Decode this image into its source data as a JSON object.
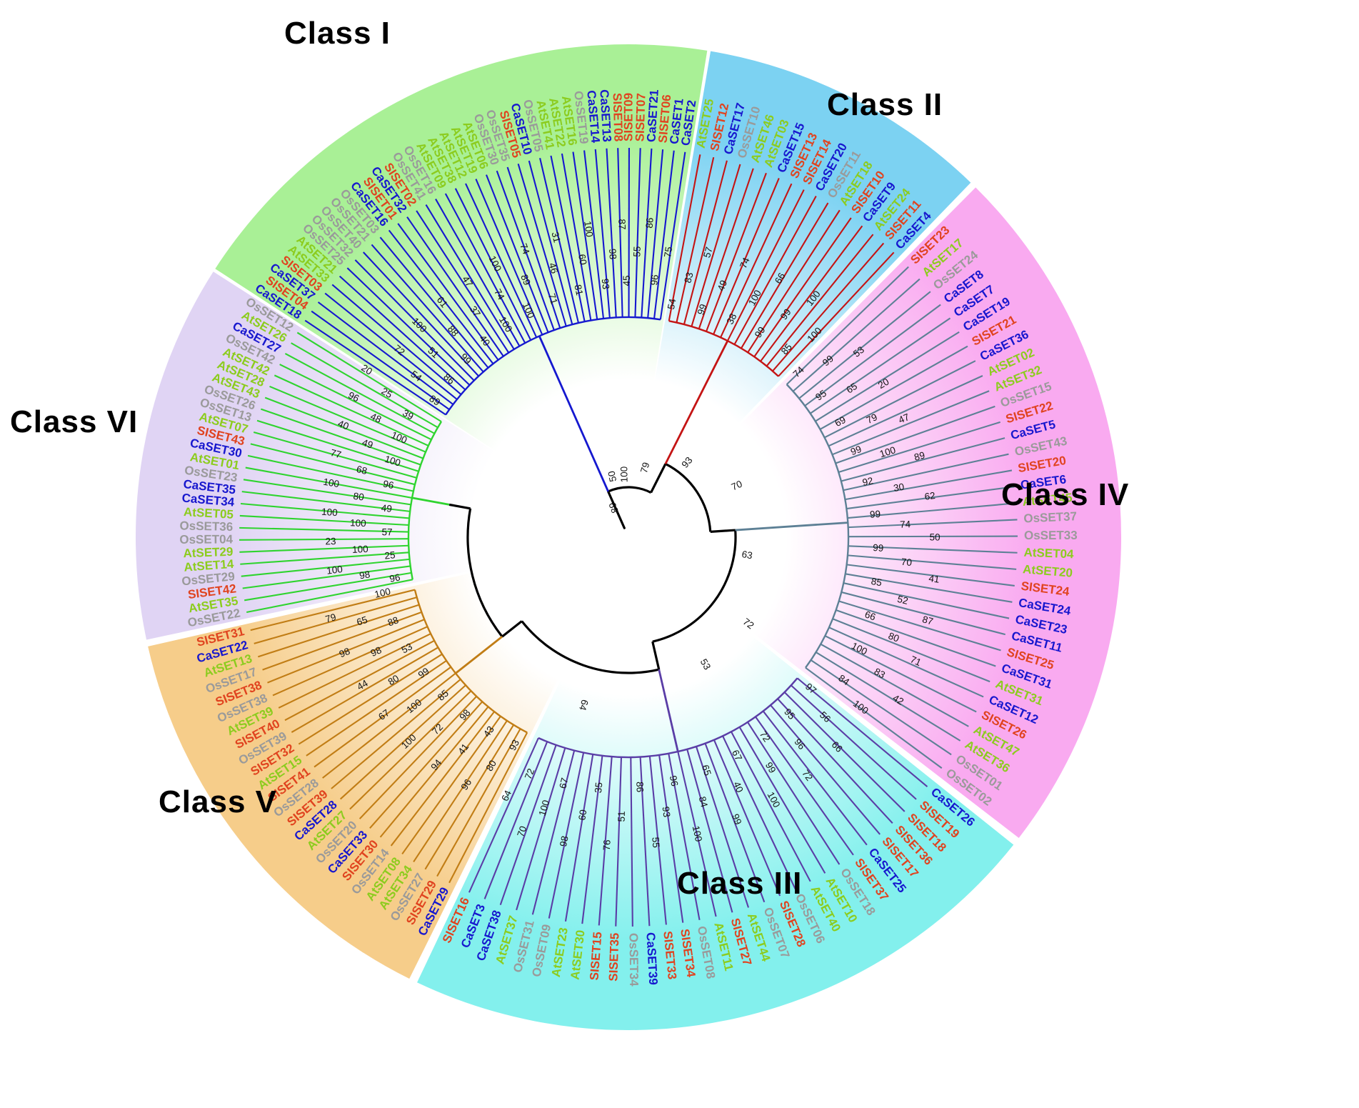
{
  "figure": {
    "type": "circular-phylogenetic-tree",
    "backbone_color": "#000000",
    "backbone_values": [
      89,
      50,
      100,
      79,
      93,
      70,
      63,
      72,
      53,
      64
    ],
    "species_colors": {
      "Ca": "#1717CE",
      "SI": "#E0431F",
      "Os": "#9A9A9A",
      "At": "#8CCC1E"
    },
    "classes": [
      {
        "name": "Class I",
        "sector_color": "#a9f096",
        "branch_color": "#1518cf",
        "leaves": [
          "CaSET18",
          "SISET04",
          "CaSET37",
          "SISET03",
          "AtSET33",
          "AtSET21",
          "OsSET25",
          "OsSET32",
          "OsSET40",
          "OsSET21",
          "OsSET03",
          "CaSET16",
          "SISET01",
          "CaSET32",
          "SISET02",
          "OsSET41",
          "OsSET16",
          "AtSET09",
          "AtSET38",
          "AtSET12",
          "AtSET19",
          "AtSET06",
          "OsSET30",
          "OsSET35",
          "SISET05",
          "CaSET10",
          "OsSET05",
          "AtSET41",
          "AtSET22",
          "AtSET16",
          "OsSET19",
          "CaSET14",
          "CaSET13",
          "SISET08",
          "SISET09",
          "SISET07",
          "CaSET21",
          "SISET06",
          "CaSET1",
          "CaSET2"
        ],
        "bootstrap_values": [
          89,
          54,
          72,
          86,
          51,
          100,
          99,
          88,
          61,
          40,
          37,
          47,
          100,
          74,
          100,
          100,
          89,
          74,
          71,
          46,
          31,
          81,
          60,
          100,
          93,
          98,
          87,
          45,
          55,
          86,
          96,
          75
        ]
      },
      {
        "name": "Class II",
        "sector_color": "#7cd2f2",
        "branch_color": "#c41414",
        "leaves": [
          "AtSET25",
          "SISET12",
          "CaSET17",
          "OsSET10",
          "AtSET46",
          "AtSET03",
          "CaSET15",
          "SISET13",
          "SISET14",
          "CaSET20",
          "OsSET11",
          "AtSET18",
          "SISET10",
          "CaSET9",
          "AtSET24",
          "SISET11",
          "CaSET4"
        ],
        "bootstrap_values": [
          54,
          83,
          57,
          99,
          49,
          74,
          38,
          100,
          66,
          99,
          99,
          100,
          85,
          100
        ]
      },
      {
        "name": "Class IV",
        "sector_color": "#f9aaf0",
        "branch_color": "#5d8095",
        "leaves": [
          "SISET23",
          "AtSET17",
          "OsSET24",
          "CaSET8",
          "CaSET7",
          "CaSET19",
          "SISET21",
          "CaSET36",
          "AtSET02",
          "AtSET32",
          "OsSET15",
          "SISET22",
          "CaSET5",
          "OsSET43",
          "SISET20",
          "CaSET6",
          "AtSET45",
          "OsSET37",
          "OsSET33",
          "AtSET04",
          "AtSET20",
          "SISET24",
          "CaSET24",
          "CaSET23",
          "CaSET11",
          "SISET25",
          "CaSET31",
          "AtSET31",
          "CaSET12",
          "SISET26",
          "AtSET47",
          "AtSET36",
          "OsSET01",
          "OsSET02"
        ],
        "bootstrap_values": [
          74,
          99,
          53,
          95,
          65,
          20,
          69,
          79,
          47,
          99,
          100,
          89,
          92,
          30,
          62,
          99,
          74,
          50,
          99,
          70,
          41,
          85,
          52,
          87,
          66,
          80,
          71,
          100,
          83,
          42,
          84,
          100
        ]
      },
      {
        "name": "Class III",
        "sector_color": "#83f0ed",
        "branch_color": "#5a3da6",
        "leaves": [
          "CaSET26",
          "SISET19",
          "SISET18",
          "SISET36",
          "SISET17",
          "CaSET25",
          "SISET37",
          "OsSET18",
          "AtSET10",
          "AtSET40",
          "OsSET06",
          "SISET28",
          "OsSET07",
          "AtSET44",
          "SISET27",
          "AtSET11",
          "OsSET08",
          "SISET34",
          "SISET33",
          "CaSET39",
          "OsSET34",
          "SISET35",
          "SISET15",
          "AtSET30",
          "AtSET23",
          "OsSET09",
          "OsSET31",
          "AtSET37",
          "CaSET38",
          "CaSET3",
          "SISET16"
        ],
        "bootstrap_values": [
          97,
          56,
          66,
          95,
          96,
          72,
          72,
          99,
          100,
          67,
          40,
          99,
          65,
          84,
          100,
          96,
          93,
          55,
          86,
          51,
          76,
          35,
          60,
          98,
          67,
          100,
          70,
          72,
          64
        ]
      },
      {
        "name": "Class V",
        "sector_color": "#f6cd8a",
        "branch_color": "#c17d15",
        "leaves": [
          "CaSET29",
          "SISET29",
          "OsSET27",
          "AtSET34",
          "AtSET08",
          "OsSET14",
          "SISET30",
          "CaSET33",
          "OsSET20",
          "AtSET27",
          "CaSET28",
          "SISET39",
          "OsSET28",
          "SISET41",
          "AtSET15",
          "SISET32",
          "OsSET39",
          "SISET40",
          "AtSET39",
          "OsSET38",
          "SISET38",
          "OsSET17",
          "AtSET13",
          "CaSET22",
          "SISET31"
        ],
        "bootstrap_values": [
          93,
          80,
          96,
          43,
          41,
          94,
          98,
          72,
          100,
          85,
          100,
          67,
          99,
          80,
          44,
          53,
          98,
          98,
          88,
          65,
          79,
          100
        ]
      },
      {
        "name": "Class VI",
        "sector_color": "#e0d4f4",
        "branch_color": "#2fd42f",
        "leaves": [
          "OsSET22",
          "AtSET35",
          "SISET42",
          "OsSET29",
          "AtSET14",
          "AtSET29",
          "OsSET04",
          "OsSET36",
          "AtSET05",
          "CaSET34",
          "CaSET35",
          "OsSET23",
          "AtSET01",
          "CaSET30",
          "SISET43",
          "AtSET07",
          "OsSET13",
          "OsSET26",
          "AtSET43",
          "AtSET28",
          "AtSET42",
          "OsSET42",
          "CaSET27",
          "AtSET26",
          "OsSET12"
        ],
        "bootstrap_values": [
          96,
          98,
          100,
          25,
          100,
          23,
          57,
          100,
          100,
          49,
          80,
          100,
          96,
          68,
          77,
          100,
          49,
          40,
          100,
          48,
          96,
          39,
          25,
          20
        ]
      }
    ]
  }
}
